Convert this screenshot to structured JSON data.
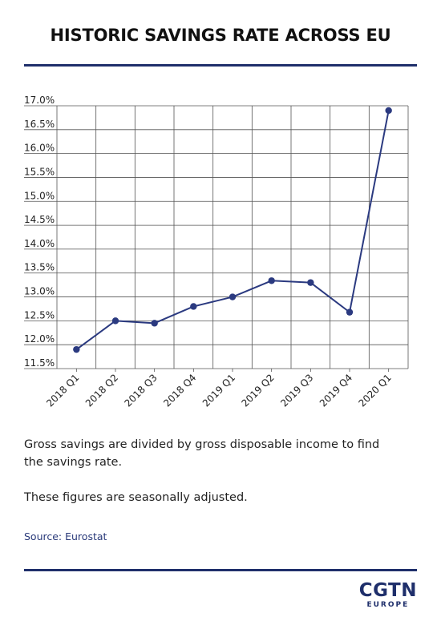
{
  "title": "HISTORIC SAVINGS RATE ACROSS EU",
  "notes": [
    "Gross savings are divided by gross disposable income to find the savings rate.",
    "These figures are seasonally adjusted."
  ],
  "source": "Source: Eurostat",
  "logo": {
    "main": "CGTN",
    "sub": "EUROPE"
  },
  "colors": {
    "accent": "#1f2f6b",
    "line": "#2b3a80",
    "grid": "#555555"
  },
  "chart_data": {
    "type": "line",
    "title": "HISTORIC SAVINGS RATE ACROSS EU",
    "categories": [
      "2018 Q1",
      "2018 Q2",
      "2018 Q3",
      "2018 Q4",
      "2019 Q1",
      "2019 Q2",
      "2019 Q3",
      "2019 Q4",
      "2020 Q1"
    ],
    "values": [
      11.9,
      12.5,
      12.45,
      12.8,
      13.0,
      13.34,
      13.3,
      12.68,
      16.9
    ],
    "ylim": [
      11.5,
      17.0
    ],
    "yticks": [
      "17.0%",
      "16.5%",
      "16.0%",
      "15.5%",
      "15.0%",
      "14.5%",
      "14.0%",
      "13.5%",
      "13.0%",
      "12.5%",
      "12.0%",
      "11.5%"
    ],
    "ytick_values": [
      17.0,
      16.5,
      16.0,
      15.5,
      15.0,
      14.5,
      14.0,
      13.5,
      13.0,
      12.5,
      12.0,
      11.5
    ],
    "xlabel": "",
    "ylabel": "",
    "grid": true,
    "legend": false,
    "markers": true
  }
}
